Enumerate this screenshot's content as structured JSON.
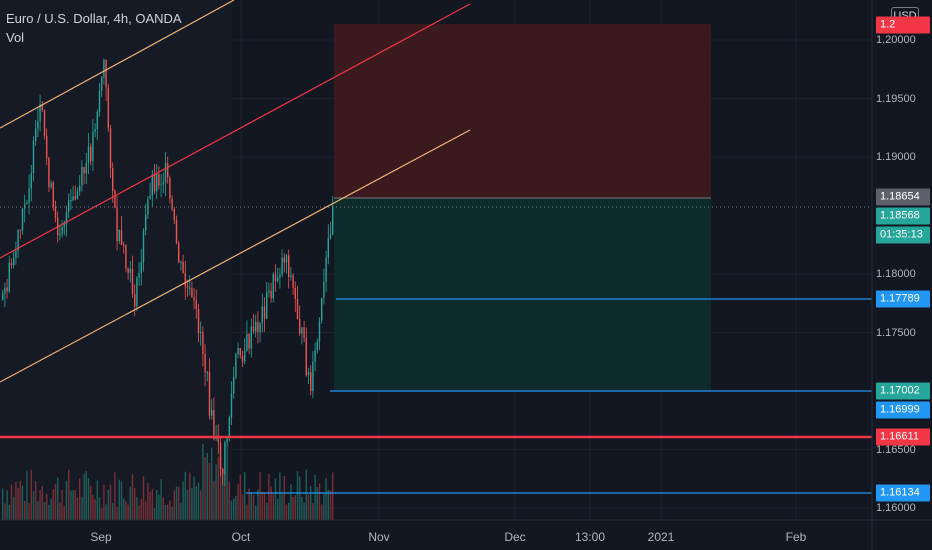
{
  "header": {
    "symbol_line": "Euro / U.S. Dollar, 4h, OANDA",
    "indicator": "Vol"
  },
  "price_axis": {
    "currency": "USD",
    "ticks": [
      "1.20000",
      "1.19500",
      "1.19000",
      "1.18000",
      "1.17500",
      "1.16500",
      "1.16000"
    ]
  },
  "time_axis": {
    "ticks": [
      "Sep",
      "Oct",
      "Nov",
      "Dec",
      "13:00",
      "2021",
      "Feb"
    ]
  },
  "price_tags": {
    "top": {
      "label": "1.2",
      "bg": "#f23645",
      "price": 1.2022
    },
    "high_marker": {
      "label": "1.18654",
      "bg": "#5d606b",
      "price": 1.18654
    },
    "last": {
      "label": "1.18568",
      "bg": "#26a69a",
      "price": 1.18568
    },
    "countdown": {
      "label": "01:35:13",
      "bg": "#26a69a"
    },
    "line1": {
      "label": "1.17789",
      "bg": "#2196f3",
      "price": 1.17789
    },
    "entry": {
      "label": "1.17002",
      "bg": "#26a69a",
      "price": 1.17002
    },
    "line2": {
      "label": "1.16999",
      "bg": "#2196f3",
      "price": 1.16999
    },
    "support_red": {
      "label": "1.16611",
      "bg": "#f23645",
      "price": 1.16611
    },
    "line3": {
      "label": "1.16134",
      "bg": "#2196f3",
      "price": 1.16134
    }
  },
  "colors": {
    "background": "#131722",
    "up": "#26a69a",
    "down": "#ef5350",
    "channel_outer": "#f0b27a",
    "channel_mid": "#f23645",
    "hline_blue": "#2196f3",
    "hline_red": "#f23645",
    "stop_zone": "#3b1a1e",
    "target_zone": "#0d2b2a"
  }
}
